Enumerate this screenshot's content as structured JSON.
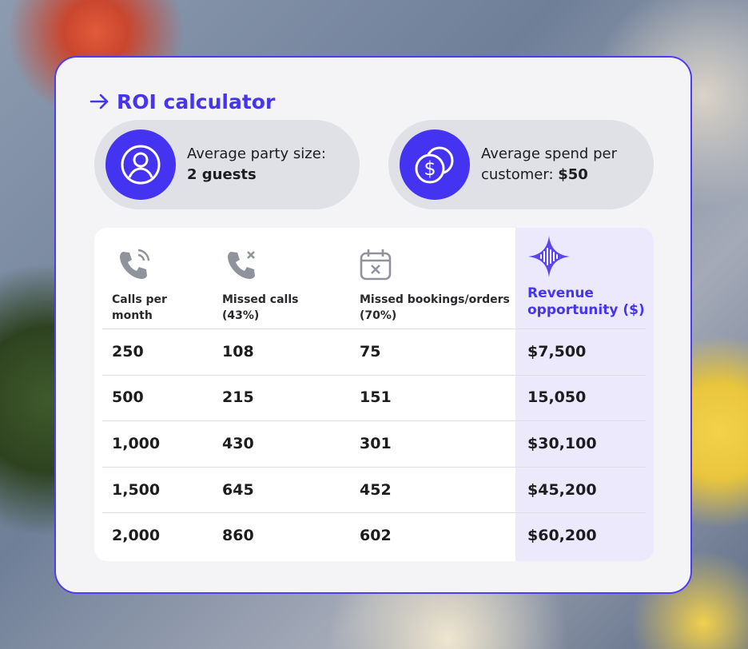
{
  "header": {
    "title": "ROI calculator"
  },
  "cards": [
    {
      "label": "Average party size:",
      "value": "2 guests"
    },
    {
      "label": "Average spend per customer:",
      "value": "$50"
    }
  ],
  "table": {
    "columns": [
      "Calls per month",
      "Missed calls (43%)",
      "Missed bookings/orders (70%)",
      "Revenue opportunity ($)"
    ],
    "rows": [
      [
        "250",
        "108",
        "75",
        "$7,500"
      ],
      [
        "500",
        "215",
        "151",
        "15,050"
      ],
      [
        "1,000",
        "430",
        "301",
        "$30,100"
      ],
      [
        "1,500",
        "645",
        "452",
        "$45,200"
      ],
      [
        "2,000",
        "860",
        "602",
        "$60,200"
      ]
    ]
  }
}
